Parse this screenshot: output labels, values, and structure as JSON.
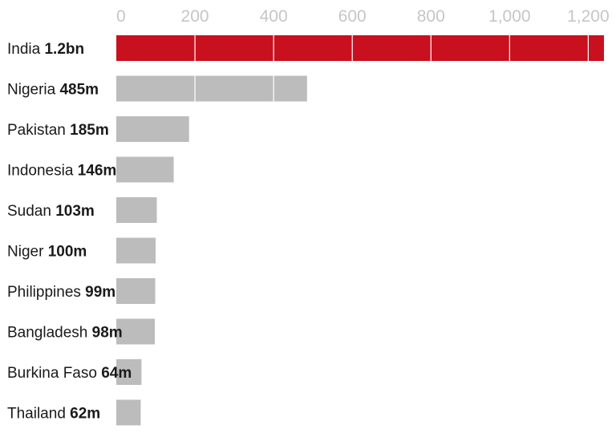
{
  "chart_data": {
    "type": "bar",
    "orientation": "horizontal",
    "categories": [
      "India",
      "Nigeria",
      "Pakistan",
      "Indonesia",
      "Sudan",
      "Niger",
      "Philippines",
      "Bangladesh",
      "Burkina Faso",
      "Thailand"
    ],
    "value_labels": [
      "1.2bn",
      "485m",
      "185m",
      "146m",
      "103m",
      "100m",
      "99m",
      "98m",
      "64m",
      "62m"
    ],
    "values": [
      1240,
      485,
      185,
      146,
      103,
      100,
      99,
      98,
      64,
      62
    ],
    "xlim": [
      0,
      1240
    ],
    "ticks": [
      0,
      200,
      400,
      600,
      800,
      1000,
      1200
    ],
    "tick_labels": [
      "0",
      "200",
      "400",
      "600",
      "800",
      "1,000",
      "1,200"
    ],
    "grid": true,
    "colors": {
      "highlight": "#c8101e",
      "default": "#bcbcbc",
      "grid": "#ffffff",
      "axis_text": "#c6c6c6"
    }
  }
}
